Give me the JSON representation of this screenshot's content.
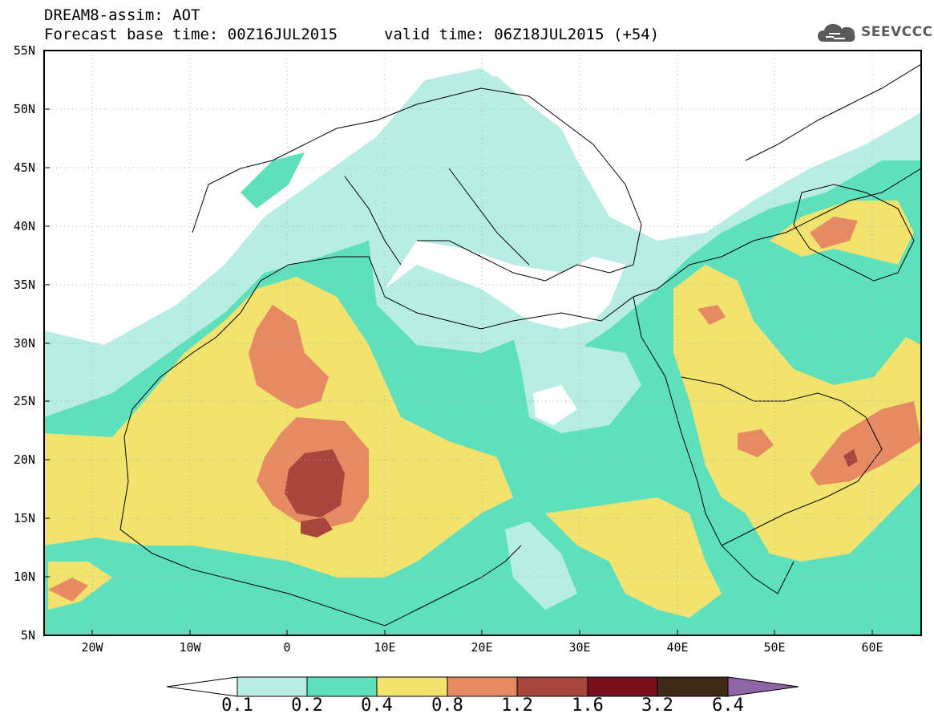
{
  "header": {
    "title": "DREAM8-assim: AOT",
    "base_time": "Forecast base time: 00Z16JUL2015",
    "valid_time": "valid time: 06Z18JUL2015 (+54)",
    "brand": "SEEVCCC"
  },
  "map": {
    "projection": "cylindrical",
    "lon_range": [
      -25,
      65
    ],
    "lat_range": [
      5,
      55
    ],
    "lat_labels": [
      "55N",
      "50N",
      "45N",
      "40N",
      "35N",
      "30N",
      "25N",
      "20N",
      "15N",
      "10N",
      "5N"
    ],
    "lon_labels": [
      "20W",
      "10W",
      "0",
      "10E",
      "20E",
      "30E",
      "40E",
      "50E",
      "60E"
    ],
    "grid": true
  },
  "colorbar": {
    "levels": [
      "0.1",
      "0.2",
      "0.4",
      "0.8",
      "1.2",
      "1.6",
      "3.2",
      "6.4"
    ],
    "colors": [
      "#ffffff",
      "#b8ede4",
      "#5fe0bd",
      "#f2e26e",
      "#e68a64",
      "#a8453c",
      "#7a0f1e",
      "#3f2a17",
      "#8e66a8"
    ]
  },
  "icons": {
    "brand_logo": "cloud-icon"
  }
}
